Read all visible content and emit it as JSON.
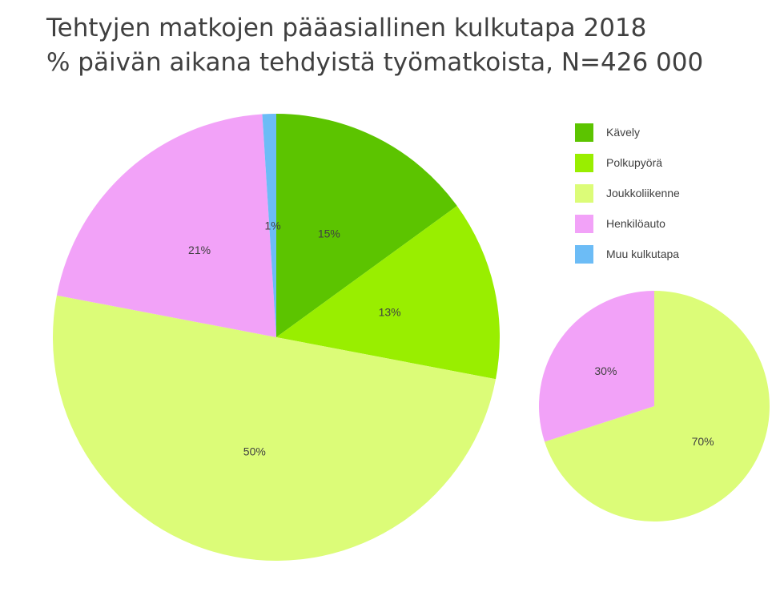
{
  "chart_data": {
    "title": "Tehtyjen matkojen pääasiallinen kulkutapa 2018",
    "subtitle": "% päivän aikana tehdyistä työmatkoista, N=426 000",
    "type": "pie",
    "legend_position": "right",
    "legend": [
      {
        "name": "Kävely",
        "color": "#5cc400"
      },
      {
        "name": "Polkupyörä",
        "color": "#99ee00"
      },
      {
        "name": "Joukkoliikenne",
        "color": "#dcfc78"
      },
      {
        "name": "Henkilöauto",
        "color": "#f2a2f8"
      },
      {
        "name": "Muu kulkutapa",
        "color": "#6cbcf6"
      }
    ],
    "pies": [
      {
        "slices": [
          {
            "category": "Kävely",
            "value": 15,
            "label": "15%"
          },
          {
            "category": "Polkupyörä",
            "value": 13,
            "label": "13%"
          },
          {
            "category": "Joukkoliikenne",
            "value": 50,
            "label": "50%"
          },
          {
            "category": "Henkilöauto",
            "value": 21,
            "label": "21%"
          },
          {
            "category": "Muu kulkutapa",
            "value": 1,
            "label": "1%"
          }
        ]
      },
      {
        "slices": [
          {
            "category": "Joukkoliikenne",
            "value": 70,
            "label": "70%"
          },
          {
            "category": "Henkilöauto",
            "value": 30,
            "label": "30%"
          }
        ]
      }
    ]
  }
}
